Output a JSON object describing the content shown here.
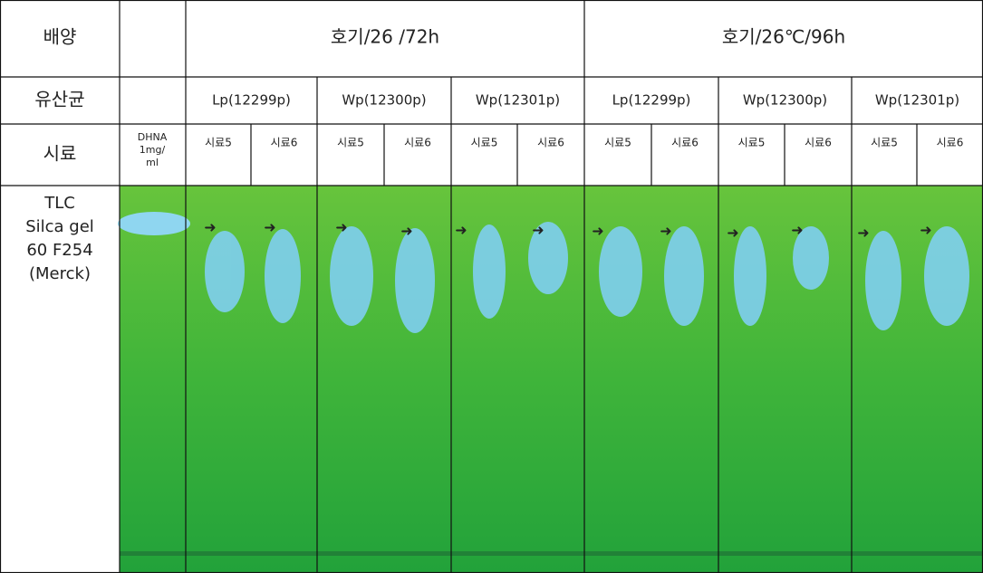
{
  "header": {
    "culture_label": "배양",
    "conditions": [
      "호기/26 /72h",
      "호기/26℃/96h"
    ]
  },
  "bacteria": {
    "label": "유산균",
    "strains": [
      "Lp(12299p)",
      "Wp(12300p)",
      "Wp(12301p)",
      "Lp(12299p)",
      "Wp(12300p)",
      "Wp(12301p)"
    ]
  },
  "samples": {
    "label": "시료",
    "standard": [
      "DHNA",
      "1mg/",
      "ml"
    ],
    "names": [
      "시료5",
      "시료6",
      "시료5",
      "시료6",
      "시료5",
      "시료6",
      "시료5",
      "시료6",
      "시료5",
      "시료6",
      "시료5",
      "시료6"
    ]
  },
  "plate": {
    "label": [
      "TLC",
      "Silca gel",
      "60 F254",
      "(Merck)"
    ]
  }
}
